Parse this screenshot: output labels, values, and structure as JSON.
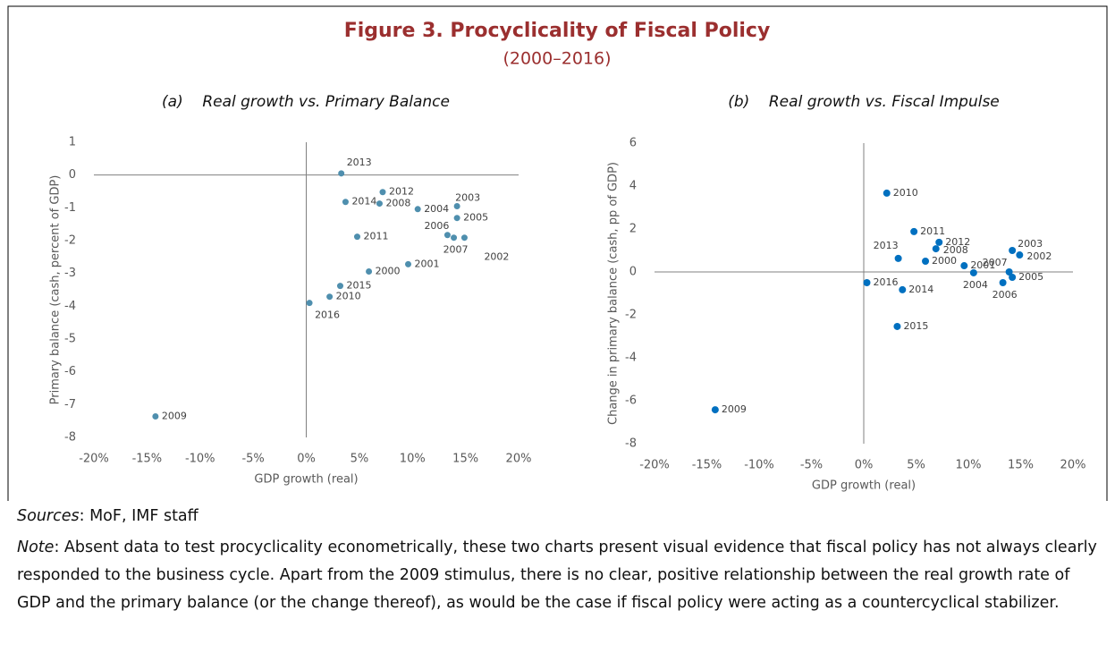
{
  "title": "Figure 3. Procyclicality of Fiscal Policy",
  "subtitle": "(2000–2016)",
  "chart_data": [
    {
      "type": "scatter",
      "title": "(a)    Real growth vs. Primary Balance",
      "xlabel": "GDP growth (real)",
      "ylabel": "Primary balance (cash, percent of GDP)",
      "series": [
        {
          "color": "#4f8fae",
          "x": [
            5.9,
            9.6,
            14.9,
            14.2,
            10.5,
            14.2,
            13.3,
            13.9,
            6.9,
            -14.2,
            2.2,
            4.8,
            7.2,
            3.3,
            3.7,
            3.2,
            0.3
          ],
          "values": [
            -2.94,
            -2.72,
            -1.91,
            -0.95,
            -1.04,
            -1.31,
            -1.83,
            -1.91,
            -0.87,
            -7.36,
            -3.71,
            -1.88,
            -0.52,
            0.05,
            -0.82,
            -3.38,
            -3.9
          ],
          "point_labels": [
            "2000",
            "2001",
            "2002",
            "2003",
            "2004",
            "2005",
            "2006",
            "2007",
            "2008",
            "2009",
            "2010",
            "2011",
            "2012",
            "2013",
            "2014",
            "2015",
            "2016"
          ]
        }
      ],
      "xlim": [
        -20,
        20
      ],
      "ylim": [
        -8,
        1
      ],
      "xticks": [
        {
          "value": -20,
          "label": "-20%"
        },
        {
          "value": -15,
          "label": "-15%"
        },
        {
          "value": -10,
          "label": "-10%"
        },
        {
          "value": -5,
          "label": "-5%"
        },
        {
          "value": 0,
          "label": "0%"
        },
        {
          "value": 5,
          "label": "5%"
        },
        {
          "value": 10,
          "label": "10%"
        },
        {
          "value": 15,
          "label": "15%"
        },
        {
          "value": 20,
          "label": "20%"
        }
      ],
      "yticks": [
        1,
        0,
        -1,
        -2,
        -3,
        -4,
        -5,
        -6,
        -7,
        -8
      ]
    },
    {
      "type": "scatter",
      "title": "(b)    Real growth vs. Fiscal Impulse",
      "xlabel": "GDP growth (real)",
      "ylabel": "Change in primary balance (cash, pp of GDP)",
      "series": [
        {
          "color": "#0070c0",
          "x": [
            5.9,
            9.6,
            14.9,
            14.2,
            10.5,
            14.2,
            13.3,
            13.9,
            6.9,
            -14.2,
            2.2,
            4.8,
            7.2,
            3.3,
            3.7,
            3.2,
            0.3
          ],
          "values": [
            0.5,
            0.29,
            0.79,
            1.0,
            -0.04,
            -0.25,
            -0.5,
            0,
            1.08,
            -6.42,
            3.67,
            1.88,
            1.38,
            0.63,
            -0.83,
            -2.54,
            -0.5
          ],
          "point_labels": [
            "2000",
            "2001",
            "2002",
            "2003",
            "2004",
            "2005",
            "2006",
            "2007",
            "2008",
            "2009",
            "2010",
            "2011",
            "2012",
            "2013",
            "2014",
            "2015",
            "2016"
          ]
        }
      ],
      "xlim": [
        -20,
        20
      ],
      "ylim": [
        -8,
        6
      ],
      "xticks": [
        {
          "value": -20,
          "label": "-20%"
        },
        {
          "value": -15,
          "label": "-15%"
        },
        {
          "value": -10,
          "label": "-10%"
        },
        {
          "value": -5,
          "label": "-5%"
        },
        {
          "value": 0,
          "label": "0%"
        },
        {
          "value": 5,
          "label": "5%"
        },
        {
          "value": 10,
          "label": "10%"
        },
        {
          "value": 15,
          "label": "15%"
        },
        {
          "value": 20,
          "label": "20%"
        }
      ],
      "yticks": [
        6,
        4,
        2,
        0,
        -2,
        -4,
        -6,
        -8
      ]
    }
  ],
  "sources": {
    "label": "Sources",
    "text": ": MoF, IMF staff"
  },
  "note": {
    "label": "Note",
    "text": ": Absent data to test procyclicality econometrically, these two charts present visual evidence that fiscal policy has not always clearly responded to the business cycle. Apart from the 2009 stimulus, there is no clear, positive relationship between the real growth rate of GDP and the primary balance (or the change thereof), as would be the case if fiscal policy were acting as a countercyclical stabilizer."
  }
}
